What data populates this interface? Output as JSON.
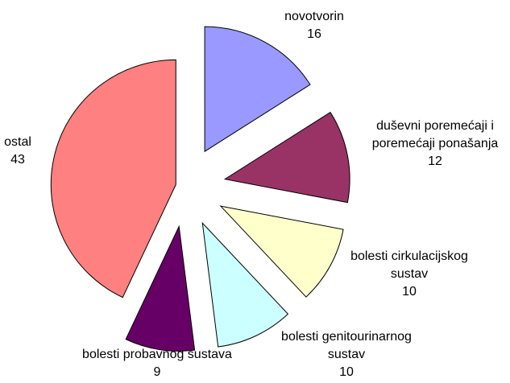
{
  "chart_data": {
    "type": "pie",
    "categories": [
      "novotvorin",
      "duševni poremećaji i poremećaji ponašanja",
      "bolesti cirkulacijskog sustav",
      "bolesti genitourinarnog sustav",
      "bolesti probavnog sustava",
      "ostal"
    ],
    "values": [
      16,
      12,
      10,
      10,
      9,
      43
    ],
    "colors": [
      "#9999ff",
      "#993366",
      "#ffffcc",
      "#ccffff",
      "#660066",
      "#ff8080"
    ]
  }
}
